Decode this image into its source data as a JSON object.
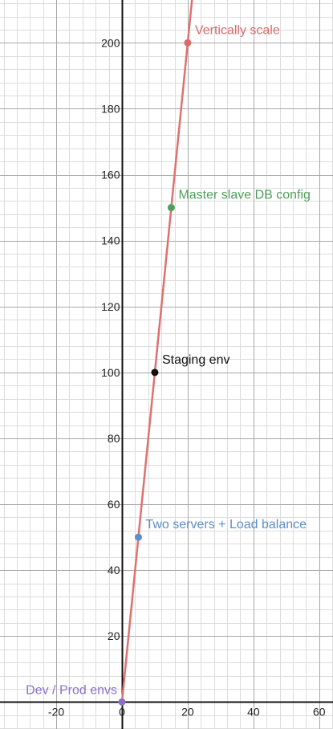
{
  "chart_data": {
    "type": "scatter",
    "title": "",
    "xlabel": "",
    "ylabel": "",
    "xlim": [
      -37.1,
      64.2
    ],
    "ylim": [
      -8.2,
      213
    ],
    "grid": true,
    "x_major_step": 20,
    "x_minor_step": 4,
    "y_major_step": 20,
    "y_minor_step": 4,
    "x_tick_labels": [
      "-20",
      "0",
      "20",
      "40",
      "60"
    ],
    "y_tick_labels": [
      "20",
      "40",
      "60",
      "80",
      "100",
      "120",
      "140",
      "160",
      "180",
      "200"
    ],
    "line": {
      "name": "",
      "slope": 10,
      "intercept": 0,
      "x_range": [
        0,
        22
      ],
      "color": "#e07070"
    },
    "points": [
      {
        "x": 0,
        "y": 0,
        "label": "Dev / Prod envs",
        "color": "#8b6fc9"
      },
      {
        "x": 5,
        "y": 50,
        "label": "Two servers + Load balance",
        "color": "#5b8fc9"
      },
      {
        "x": 10,
        "y": 100,
        "label": "Staging env",
        "color": "#111111"
      },
      {
        "x": 15,
        "y": 150,
        "label": "Master slave DB config",
        "color": "#4f9e5a"
      },
      {
        "x": 20,
        "y": 200,
        "label": "Vertically scale",
        "color": "#d96a6a"
      }
    ]
  }
}
